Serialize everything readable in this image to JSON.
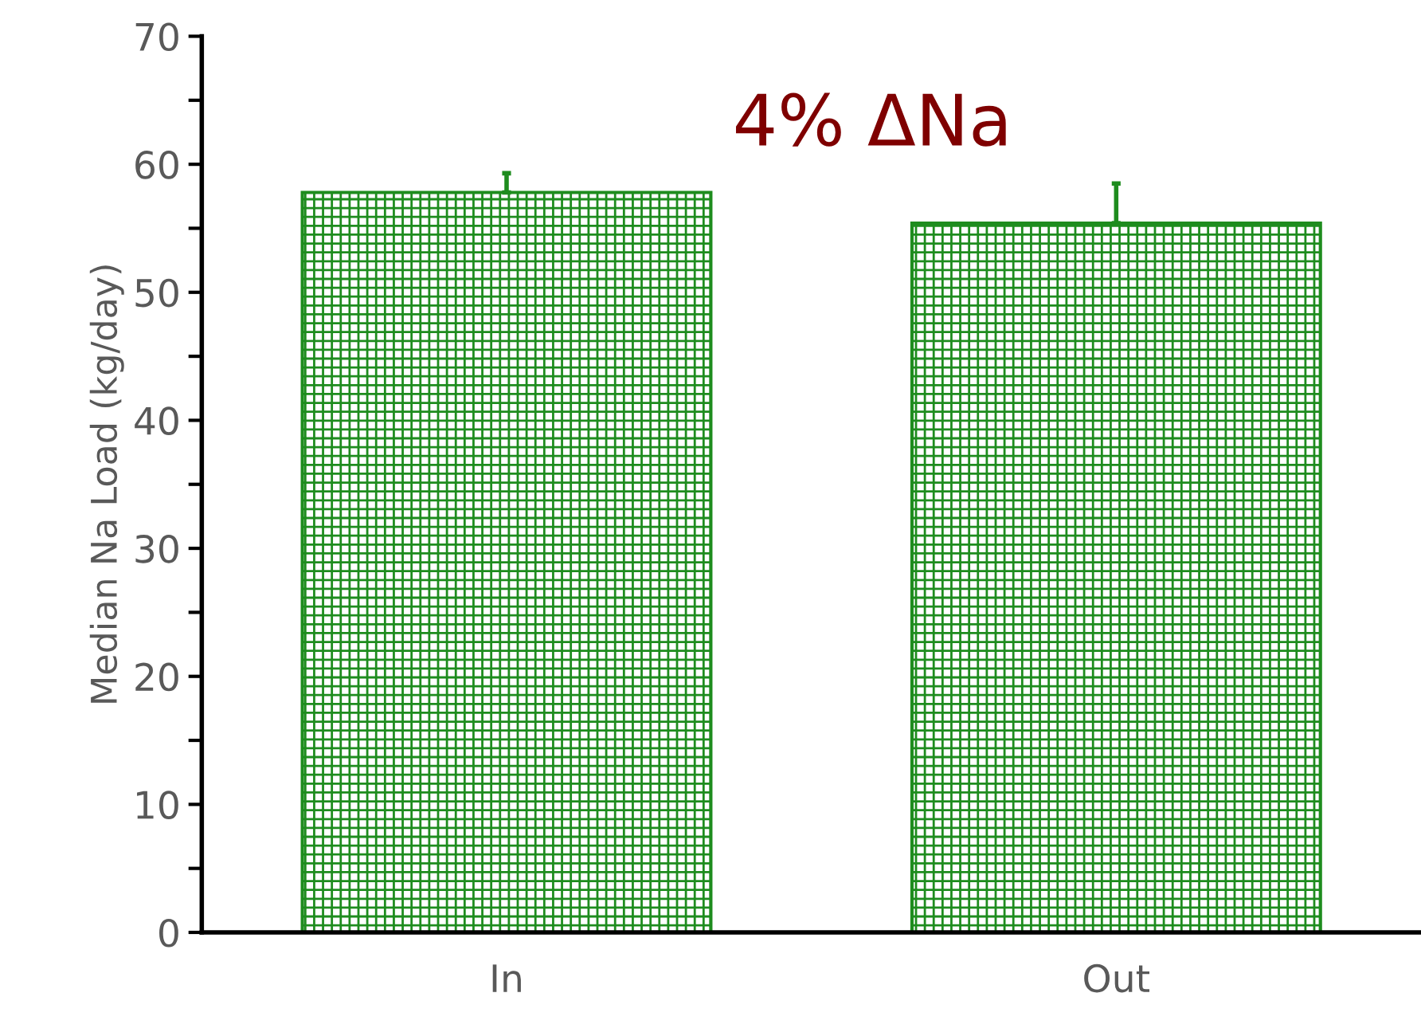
{
  "chart_data": {
    "type": "bar",
    "ylabel": "Median Na Load (kg/day)",
    "categories": [
      "In",
      "Out"
    ],
    "series": [
      {
        "color": "#1e8c1e",
        "values": [
          57.8,
          55.4
        ],
        "errors": [
          [
            57.8,
            59.3
          ],
          [
            55.4,
            58.5
          ]
        ]
      }
    ],
    "ylim": [
      0,
      70
    ],
    "yticks": [
      0,
      {
        "value": 5,
        "label": null
      },
      10,
      {
        "value": 15,
        "label": null
      },
      20,
      {
        "value": 25,
        "label": null
      },
      30,
      {
        "value": 35,
        "label": null
      },
      40,
      {
        "value": 45,
        "label": null
      },
      50,
      {
        "value": 55,
        "label": null
      },
      60,
      {
        "value": 65,
        "label": null
      },
      70
    ],
    "annotations": [
      "4% ΔNa"
    ],
    "grid": false,
    "legend": false
  }
}
